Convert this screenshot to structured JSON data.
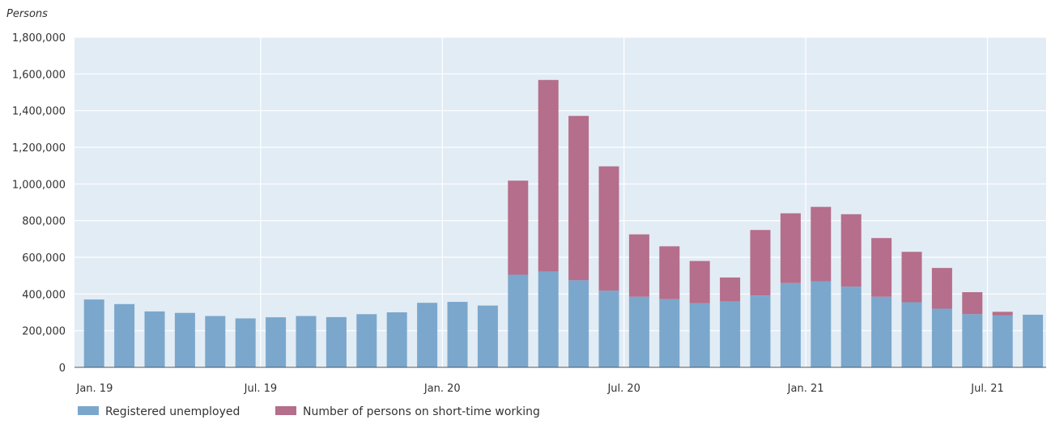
{
  "chart_data": {
    "type": "bar",
    "stacked": true,
    "unit_label": "Persons",
    "ylim": [
      0,
      1800000
    ],
    "yticks": [
      0,
      200000,
      400000,
      600000,
      800000,
      1000000,
      1200000,
      1400000,
      1600000,
      1800000
    ],
    "ytick_labels": [
      "0",
      "200,000",
      "400,000",
      "600,000",
      "800,000",
      "1,000,000",
      "1,200,000",
      "1,400,000",
      "1,600,000",
      "1,800,000"
    ],
    "grid": true,
    "legend": "bottom-left",
    "categories": [
      "Jan. 19",
      "Feb. 19",
      "Mar. 19",
      "Apr. 19",
      "May 19",
      "Jun. 19",
      "Jul. 19",
      "Aug. 19",
      "Sep. 19",
      "Oct. 19",
      "Nov. 19",
      "Dec. 19",
      "Jan. 20",
      "Feb. 20",
      "Mar. 20",
      "Apr. 20",
      "May 20",
      "Jun. 20",
      "Jul. 20",
      "Aug. 20",
      "Sep. 20",
      "Oct. 20",
      "Nov. 20",
      "Dec. 20",
      "Jan. 21",
      "Feb. 21",
      "Mar. 21",
      "Apr. 21",
      "May 21",
      "Jun. 21",
      "Jul. 21"
    ],
    "xtick_labels": [
      {
        "index": 0,
        "label": "Jan. 19"
      },
      {
        "index": 6,
        "label": "Jul. 19"
      },
      {
        "index": 12,
        "label": "Jan. 20"
      },
      {
        "index": 18,
        "label": "Jul. 20"
      },
      {
        "index": 24,
        "label": "Jan. 21"
      },
      {
        "index": 30,
        "label": "Jul. 21"
      }
    ],
    "series": [
      {
        "name": "Registered unemployed",
        "color": "#7ba7cc",
        "values": [
          370000,
          345000,
          305000,
          297000,
          280000,
          267000,
          273000,
          280000,
          274000,
          290000,
          300000,
          352000,
          357000,
          337000,
          505000,
          522000,
          475000,
          418000,
          385000,
          372000,
          350000,
          360000,
          392000,
          460000,
          470000,
          440000,
          385000,
          355000,
          320000,
          290000,
          283000
        ]
      },
      {
        "name": "Number of persons on short-time working",
        "color": "#b56e8b",
        "values": [
          0,
          0,
          0,
          0,
          0,
          0,
          0,
          0,
          0,
          0,
          0,
          0,
          0,
          0,
          513000,
          1045000,
          896000,
          678000,
          340000,
          288000,
          230000,
          130000,
          357000,
          380000,
          405000,
          395000,
          320000,
          275000,
          222000,
          120000,
          20000
        ]
      }
    ],
    "extra_bar": {
      "category": "Aug. 21",
      "series": "Registered unemployed",
      "value": 287000
    }
  },
  "plot": {
    "background": "#e2ecf5",
    "gridline_color": "#ffffff",
    "axis_color": "#555555"
  }
}
